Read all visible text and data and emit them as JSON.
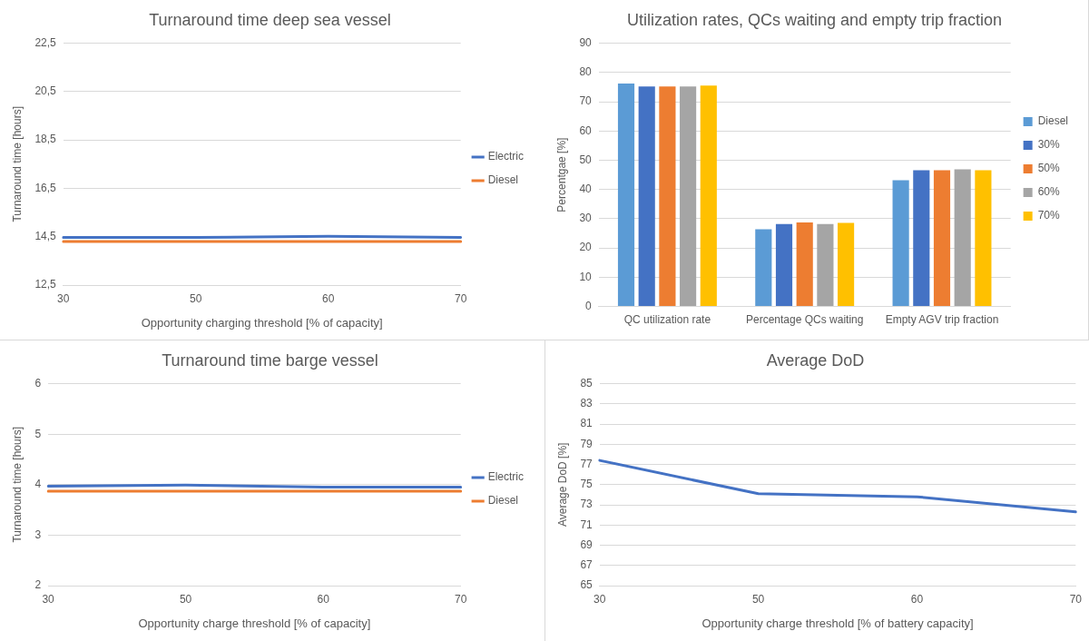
{
  "chart_data": [
    {
      "type": "line",
      "title": "Turnaround time deep sea vessel",
      "xlabel": "Opportunity charging threshold [% of capacity]",
      "ylabel": "Turnaround time [hours]",
      "categories": [
        "30",
        "50",
        "60",
        "70"
      ],
      "series": [
        {
          "name": "Electric",
          "color": "#4472c4",
          "values": [
            14.47,
            14.47,
            14.52,
            14.47
          ]
        },
        {
          "name": "Diesel",
          "color": "#ed7d31",
          "values": [
            14.3,
            14.3,
            14.3,
            14.3
          ]
        }
      ],
      "ylim": [
        12.5,
        22.5
      ],
      "yticks": [
        {
          "value": 12.5,
          "label": "12,5"
        },
        {
          "value": 14.5,
          "label": "14,5"
        },
        {
          "value": 16.5,
          "label": "16,5"
        },
        {
          "value": 18.5,
          "label": "18,5"
        },
        {
          "value": 20.5,
          "label": "20,5"
        },
        {
          "value": 22.5,
          "label": "22,5"
        }
      ],
      "grid": "y",
      "legend": "right",
      "marker": "none"
    },
    {
      "type": "bar",
      "title": "Utilization rates, QCs waiting and empty trip fraction",
      "ylabel": "Percentgae [%]",
      "categories": [
        "QC utilization rate",
        "Percentage QCs waiting",
        "Empty AGV trip fraction"
      ],
      "series": [
        {
          "name": "Diesel",
          "color": "#5b9bd5",
          "values": [
            76.2,
            26.4,
            43.2
          ]
        },
        {
          "name": "30%",
          "color": "#4472c4",
          "values": [
            75.2,
            28.2,
            46.6
          ]
        },
        {
          "name": "50%",
          "color": "#ed7d31",
          "values": [
            75.2,
            28.7,
            46.6
          ]
        },
        {
          "name": "60%",
          "color": "#a5a5a5",
          "values": [
            75.2,
            28.2,
            46.9
          ]
        },
        {
          "name": "70%",
          "color": "#ffc000",
          "values": [
            75.5,
            28.6,
            46.6
          ]
        }
      ],
      "ylim": [
        0,
        90
      ],
      "yticks": [
        0,
        10,
        20,
        30,
        40,
        50,
        60,
        70,
        80,
        90
      ],
      "grid": "y",
      "legend": "right"
    },
    {
      "type": "line",
      "title": "Turnaround time barge vessel",
      "xlabel": "Opportunity charge threshold [% of capacity]",
      "ylabel": "Turnaround time [hours]",
      "categories": [
        "30",
        "50",
        "60",
        "70"
      ],
      "series": [
        {
          "name": "Electric",
          "color": "#4472c4",
          "values": [
            3.97,
            3.99,
            3.95,
            3.95
          ]
        },
        {
          "name": "Diesel",
          "color": "#ed7d31",
          "values": [
            3.87,
            3.87,
            3.87,
            3.87
          ]
        }
      ],
      "ylim": [
        2,
        6
      ],
      "yticks": [
        2,
        3,
        4,
        5,
        6
      ],
      "grid": "y",
      "legend": "right",
      "marker": "none"
    },
    {
      "type": "line",
      "title": "Average DoD",
      "xlabel": "Opportunity charge threshold [% of battery capacity]",
      "ylabel": "Average DoD [%]",
      "categories": [
        "30",
        "50",
        "60",
        "70"
      ],
      "series": [
        {
          "color": "#4472c4",
          "values": [
            77.4,
            74.1,
            73.8,
            72.3
          ]
        }
      ],
      "ylim": [
        65,
        85
      ],
      "yticks": [
        65,
        67,
        69,
        71,
        73,
        75,
        77,
        79,
        81,
        83,
        85
      ],
      "grid": "y",
      "marker": "none"
    }
  ]
}
